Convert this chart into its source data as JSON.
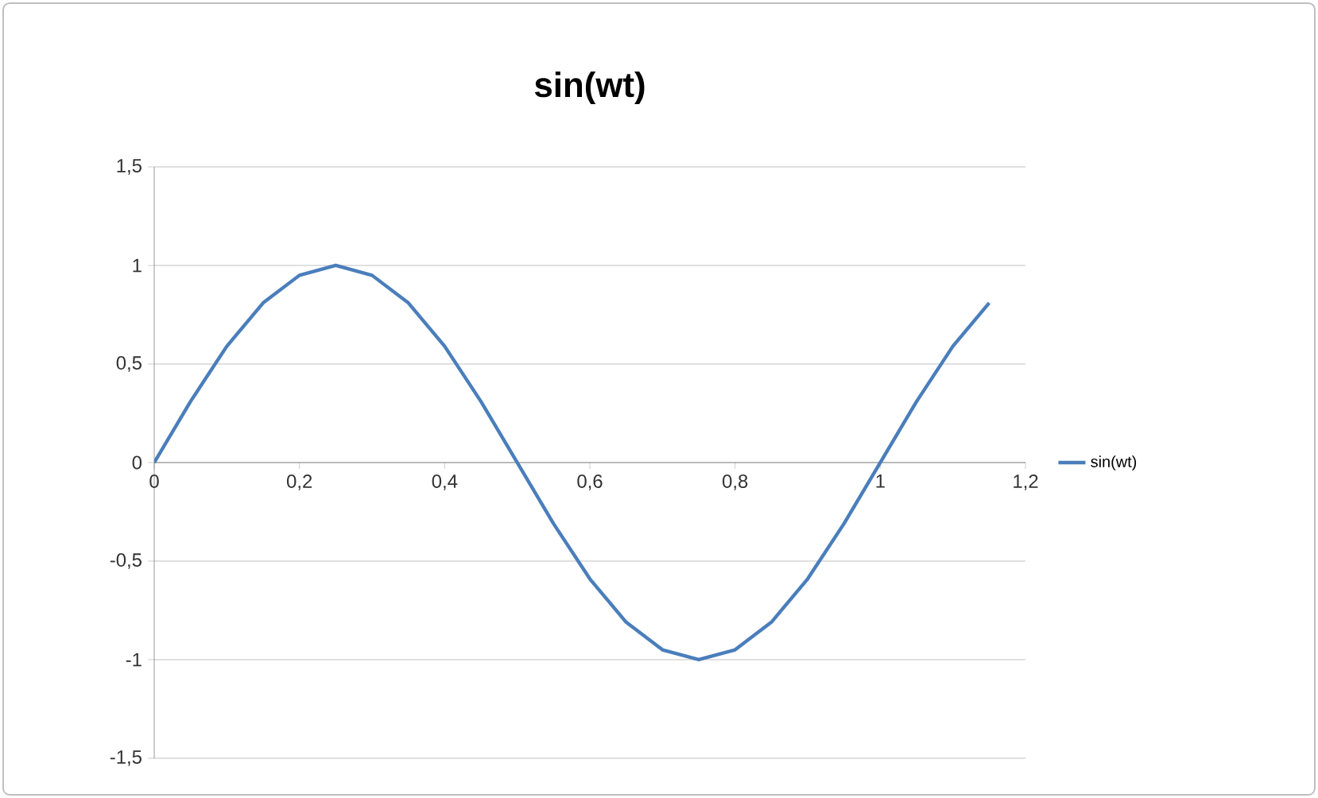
{
  "chart_data": {
    "type": "line",
    "title": "sin(wt)",
    "x": [
      0,
      0.05,
      0.1,
      0.15,
      0.2,
      0.25,
      0.3,
      0.35,
      0.4,
      0.45,
      0.5,
      0.55,
      0.6,
      0.65,
      0.7,
      0.75,
      0.8,
      0.85,
      0.9,
      0.95,
      1,
      1.05,
      1.1,
      1.15
    ],
    "series": [
      {
        "name": "sin(wt)",
        "color": "#4a7ebb",
        "values": [
          0,
          0.31,
          0.59,
          0.81,
          0.95,
          1,
          0.95,
          0.81,
          0.59,
          0.31,
          0,
          -0.31,
          -0.59,
          -0.81,
          -0.95,
          -1,
          -0.95,
          -0.81,
          -0.59,
          -0.31,
          0,
          0.31,
          0.59,
          0.81
        ]
      }
    ],
    "xlim": [
      0,
      1.2
    ],
    "xticks": [
      0,
      {
        "value": 0.2,
        "label": "0,2"
      },
      {
        "value": 0.4,
        "label": "0,4"
      },
      {
        "value": 0.6,
        "label": "0,6"
      },
      {
        "value": 0.8,
        "label": "0,8"
      },
      1,
      {
        "value": 1.2,
        "label": "1,2"
      }
    ],
    "ylim": [
      -1.5,
      1.5
    ],
    "yticks": [
      {
        "value": -1.5,
        "label": "-1,5"
      },
      -1,
      {
        "value": -0.5,
        "label": "-0,5"
      },
      0,
      {
        "value": 0.5,
        "label": "0,5"
      },
      1,
      {
        "value": 1.5,
        "label": "1,5"
      }
    ],
    "grid": "y",
    "legend": "right",
    "marker": "none",
    "line_style": "solid"
  }
}
